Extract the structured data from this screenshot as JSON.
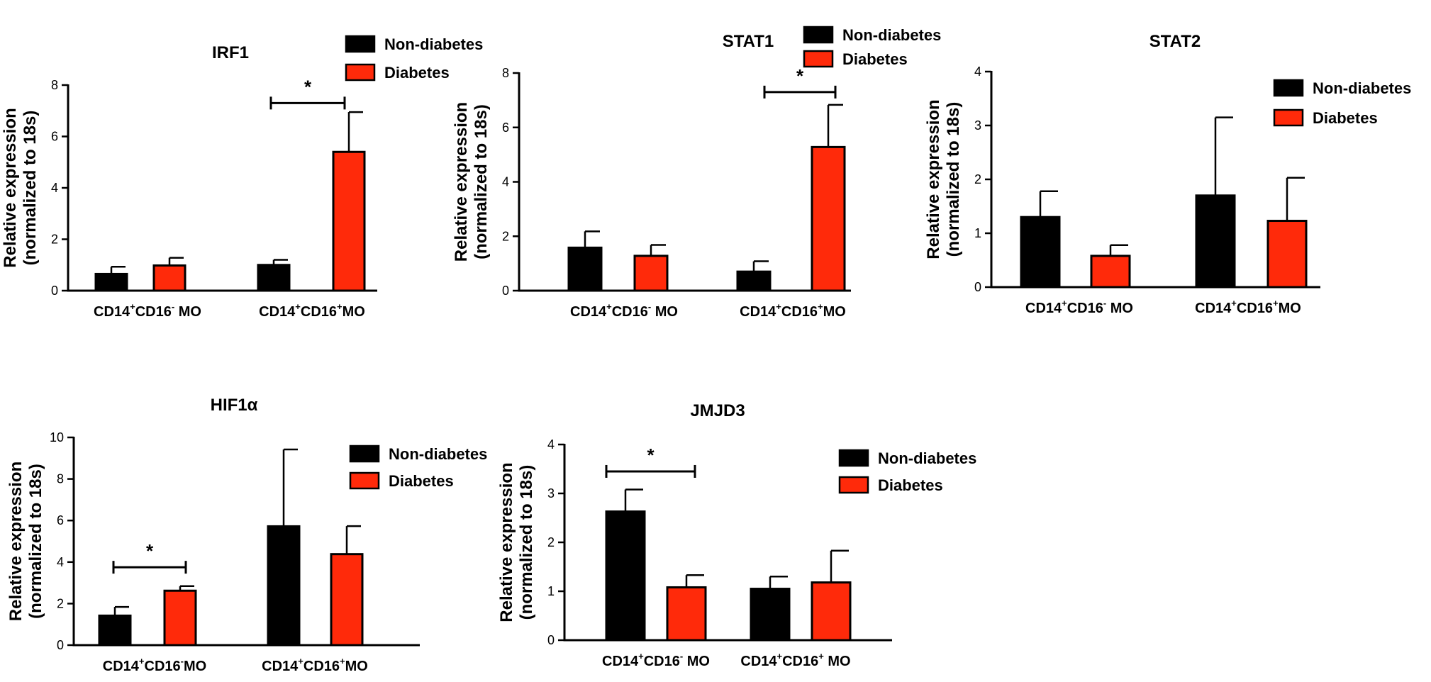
{
  "colors": {
    "non_diabetes": "#000000",
    "diabetes": "#ff2a0a",
    "axis": "#000000"
  },
  "chart_data": [
    {
      "type": "bar",
      "title": "IRF1",
      "ylabel": [
        "Relative expression",
        "(normalized to 18s)"
      ],
      "ylim": [
        0,
        8
      ],
      "yticks": [
        0,
        2,
        4,
        6,
        8
      ],
      "categories": [
        {
          "base": "CD14",
          "sup1": "+",
          "mid": "CD16",
          "sup2": "-",
          "tail": " MO"
        },
        {
          "base": "CD14",
          "sup1": "+",
          "mid": "CD16",
          "sup2": "+",
          "tail": "MO"
        }
      ],
      "series": [
        {
          "name": "Non-diabetes",
          "values": [
            0.65,
            1.0
          ],
          "errors": [
            0.28,
            0.2
          ]
        },
        {
          "name": "Diabetes",
          "values": [
            0.98,
            5.4
          ],
          "errors": [
            0.3,
            1.55
          ]
        }
      ],
      "significance": [
        {
          "label": "*",
          "y": 7.3
        }
      ],
      "legend": [
        "Non-diabetes",
        "Diabetes"
      ]
    },
    {
      "type": "bar",
      "title": "STAT1",
      "ylabel": [
        "Relative expression",
        "(normalized to 18s)"
      ],
      "ylim": [
        0,
        8
      ],
      "yticks": [
        0,
        2,
        4,
        6,
        8
      ],
      "categories": [
        {
          "base": "CD14",
          "sup1": "+",
          "mid": "CD16",
          "sup2": "-",
          "tail": " MO"
        },
        {
          "base": "CD14",
          "sup1": "+",
          "mid": "CD16",
          "sup2": "+",
          "tail": "MO"
        }
      ],
      "series": [
        {
          "name": "Non-diabetes",
          "values": [
            1.58,
            0.7
          ],
          "errors": [
            0.6,
            0.38
          ]
        },
        {
          "name": "Diabetes",
          "values": [
            1.28,
            5.28
          ],
          "errors": [
            0.4,
            1.55
          ]
        }
      ],
      "significance": [
        {
          "label": "*",
          "y": 7.3
        }
      ],
      "legend": [
        "Non-diabetes",
        "Diabetes"
      ]
    },
    {
      "type": "bar",
      "title": "STAT2",
      "ylabel": [
        "Relative expression",
        "(normalized to 18s)"
      ],
      "ylim": [
        0,
        4
      ],
      "yticks": [
        0,
        1,
        2,
        3,
        4
      ],
      "categories": [
        {
          "base": "CD14",
          "sup1": "+",
          "mid": "CD16",
          "sup2": "-",
          "tail": " MO"
        },
        {
          "base": "CD14",
          "sup1": "+",
          "mid": "CD16",
          "sup2": "+",
          "tail": "MO"
        }
      ],
      "series": [
        {
          "name": "Non-diabetes",
          "values": [
            1.3,
            1.7
          ],
          "errors": [
            0.48,
            1.45
          ]
        },
        {
          "name": "Diabetes",
          "values": [
            0.58,
            1.23
          ],
          "errors": [
            0.2,
            0.8
          ]
        }
      ],
      "significance": [],
      "legend": [
        "Non-diabetes",
        "Diabetes"
      ]
    },
    {
      "type": "bar",
      "title": "HIF1α",
      "ylabel": [
        "Relative expression",
        "(normalized to 18s)"
      ],
      "ylim": [
        0,
        10
      ],
      "yticks": [
        0,
        2,
        4,
        6,
        8,
        10
      ],
      "categories": [
        {
          "base": "CD14",
          "sup1": "+",
          "mid": "CD16",
          "sup2": "-",
          "tail": "MO"
        },
        {
          "base": "CD14",
          "sup1": "+",
          "mid": "CD16",
          "sup2": "+",
          "tail": "MO"
        }
      ],
      "series": [
        {
          "name": "Non-diabetes",
          "values": [
            1.42,
            5.72
          ],
          "errors": [
            0.42,
            3.7
          ]
        },
        {
          "name": "Diabetes",
          "values": [
            2.62,
            4.38
          ],
          "errors": [
            0.22,
            1.35
          ]
        }
      ],
      "significance": [
        {
          "label": "*",
          "y": 3.75
        }
      ],
      "legend": [
        "Non-diabetes",
        "Diabetes"
      ]
    },
    {
      "type": "bar",
      "title": "JMJD3",
      "ylabel": [
        "Relative expression",
        "(normalized to 18s)"
      ],
      "ylim": [
        0,
        4
      ],
      "yticks": [
        0,
        1,
        2,
        3,
        4
      ],
      "categories": [
        {
          "base": "CD14",
          "sup1": "+",
          "mid": "CD16",
          "sup2": "-",
          "tail": " MO"
        },
        {
          "base": "CD14",
          "sup1": "+",
          "mid": "CD16",
          "sup2": "+",
          "tail": " MO"
        }
      ],
      "series": [
        {
          "name": "Non-diabetes",
          "values": [
            2.63,
            1.05
          ],
          "errors": [
            0.45,
            0.25
          ]
        },
        {
          "name": "Diabetes",
          "values": [
            1.08,
            1.18
          ],
          "errors": [
            0.25,
            0.65
          ]
        }
      ],
      "significance": [
        {
          "label": "*",
          "y": 3.45
        }
      ],
      "legend": [
        "Non-diabetes",
        "Diabetes"
      ]
    }
  ]
}
